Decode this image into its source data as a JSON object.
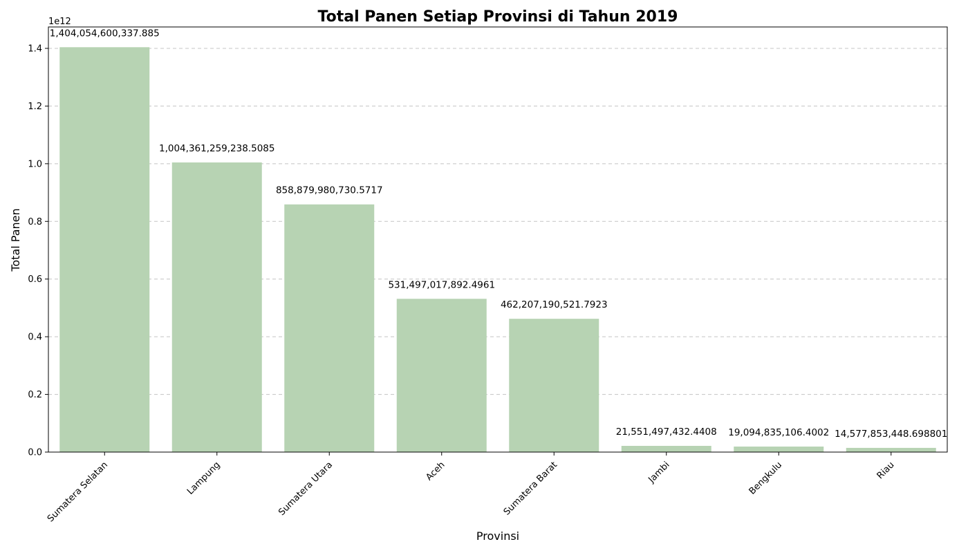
{
  "chart_data": {
    "type": "bar",
    "title": "Total Panen Setiap Provinsi di Tahun 2019",
    "xlabel": "Provinsi",
    "ylabel": "Total Panen",
    "y_offset_text": "1e12",
    "categories": [
      "Sumatera Selatan",
      "Lampung",
      "Sumatera Utara",
      "Aceh",
      "Sumatera Barat",
      "Jambi",
      "Bengkulu",
      "Riau"
    ],
    "values": [
      1404054600337.885,
      1004361259238.5085,
      858879980730.5717,
      531497017892.4961,
      462207190521.7923,
      21551497432.4408,
      19094835106.4002,
      14577853448.698801
    ],
    "data_labels": [
      "1,404,054,600,337.885",
      "1,004,361,259,238.5085",
      "858,879,980,730.5717",
      "531,497,017,892.4961",
      "462,207,190,521.7923",
      "21,551,497,432.4408",
      "19,094,835,106.4002",
      "14,577,853,448.698801"
    ],
    "yticks": [
      0,
      200000000000.0,
      400000000000.0,
      600000000000.0,
      800000000000.0,
      1000000000000.0,
      1200000000000.0,
      1400000000000.0
    ],
    "ytick_labels": [
      "0.0",
      "0.2",
      "0.4",
      "0.6",
      "0.8",
      "1.0",
      "1.2",
      "1.4"
    ],
    "ylim": [
      0,
      1474257330354.78
    ],
    "grid": "y-dashed",
    "legend": "none",
    "x_tick_rotation_deg": 45,
    "colors": {
      "bar": "#b7d3b3",
      "grid": "#c4c4c4",
      "axis": "#000000"
    }
  }
}
